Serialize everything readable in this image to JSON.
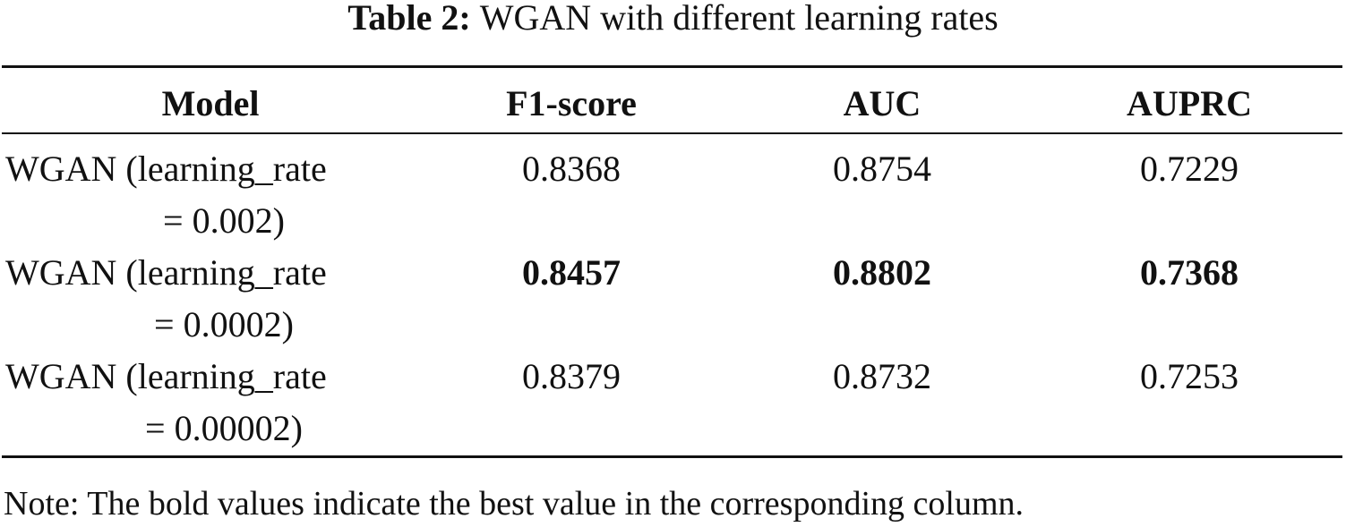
{
  "caption": {
    "label": "Table 2:",
    "text": "WGAN with different learning rates"
  },
  "table": {
    "headers": [
      "Model",
      "F1-score",
      "AUC",
      "AUPRC"
    ],
    "rows": [
      {
        "model_line1": "WGAN (learning_rate",
        "model_line2": "= 0.002)",
        "f1": "0.8368",
        "auc": "0.8754",
        "auprc": "0.7229",
        "bold": false
      },
      {
        "model_line1": "WGAN (learning_rate",
        "model_line2": "= 0.0002)",
        "f1": "0.8457",
        "auc": "0.8802",
        "auprc": "0.7368",
        "bold": true
      },
      {
        "model_line1": "WGAN (learning_rate",
        "model_line2": "= 0.00002)",
        "f1": "0.8379",
        "auc": "0.8732",
        "auprc": "0.7253",
        "bold": false
      }
    ]
  },
  "note": "Note: The bold values indicate the best value in the corresponding column."
}
